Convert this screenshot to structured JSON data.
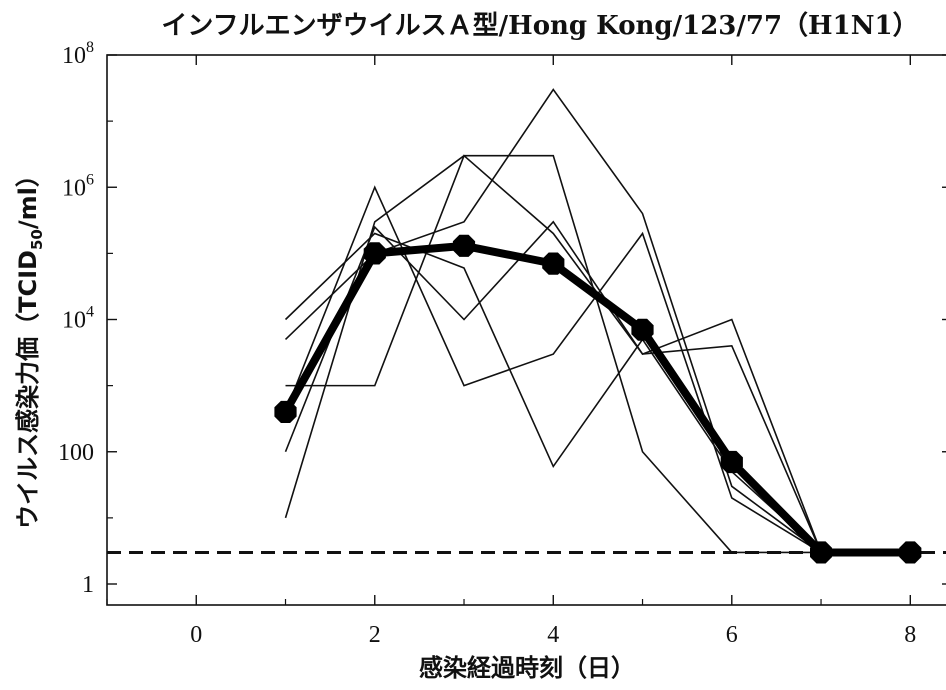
{
  "chart_data": {
    "type": "line",
    "title": "インフルエンザウイルスＡ型/Hong Kong/123/77（H1N1）",
    "xlabel": "感染経過時刻（日）",
    "ylabel_main": "ウイルス感染力価（TCID",
    "ylabel_sub": "50",
    "ylabel_tail": "/ml）",
    "xlim": [
      -1,
      8.4
    ],
    "ylim": [
      1,
      100000000
    ],
    "y_scale": "log",
    "x_ticks": [
      0,
      2,
      4,
      6,
      8
    ],
    "x_tick_labels": [
      "0",
      "2",
      "4",
      "6",
      "8"
    ],
    "y_ticks": [
      1,
      100,
      10000,
      1000000,
      100000000
    ],
    "y_tick_labels": [
      {
        "base": "1",
        "exp": ""
      },
      {
        "base": "100",
        "exp": ""
      },
      {
        "base": "10",
        "exp": "4"
      },
      {
        "base": "10",
        "exp": "6"
      },
      {
        "base": "10",
        "exp": "8"
      }
    ],
    "detection_limit": 3,
    "series": [
      {
        "x": [
          1,
          2,
          3,
          4,
          5,
          6,
          7
        ],
        "values": [
          400,
          1000000,
          1000,
          3000,
          200000,
          20,
          3
        ]
      },
      {
        "x": [
          1,
          2,
          3,
          4,
          5,
          6,
          7
        ],
        "values": [
          10,
          300000,
          3000000,
          3000000,
          100,
          3,
          3
        ]
      },
      {
        "x": [
          1,
          2,
          3,
          4,
          5,
          6,
          7
        ],
        "values": [
          100,
          250000,
          10000,
          300000,
          3000,
          4000,
          3
        ]
      },
      {
        "x": [
          1,
          2,
          3,
          4,
          5,
          6,
          7
        ],
        "values": [
          5000,
          100000,
          300000,
          30000000,
          400000,
          30,
          3
        ]
      },
      {
        "x": [
          1,
          2,
          3,
          4,
          5,
          6,
          7
        ],
        "values": [
          1000,
          1000,
          3000000,
          200000,
          3000,
          10000,
          3
        ]
      },
      {
        "x": [
          1,
          2,
          3,
          4,
          5,
          6,
          7
        ],
        "values": [
          10000,
          200000,
          60000,
          60,
          5000,
          50,
          3
        ]
      }
    ],
    "mean_series": {
      "x": [
        1,
        2,
        3,
        4,
        5,
        6,
        7,
        8
      ],
      "values": [
        400,
        100000,
        130000,
        70000,
        7000,
        70,
        3,
        3
      ]
    }
  }
}
